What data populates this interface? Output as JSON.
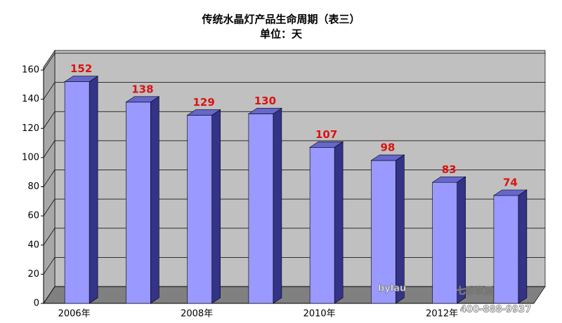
{
  "chart_data": {
    "type": "bar3d",
    "title": "传统水晶灯产品生命周期（表三）",
    "subtitle": "单位：天",
    "categories": [
      "2006年",
      null,
      "2008年",
      null,
      "2010年",
      null,
      "2012年",
      null
    ],
    "values": [
      152,
      138,
      129,
      130,
      107,
      98,
      83,
      74
    ],
    "color": "#9999ff",
    "ylim": [
      0,
      160
    ],
    "yticks": [
      0,
      20,
      40,
      60,
      80,
      100,
      120,
      140,
      160
    ],
    "grid": true,
    "watermark": [
      "bylau",
      "七彩家居",
      "400-888-9937"
    ]
  }
}
